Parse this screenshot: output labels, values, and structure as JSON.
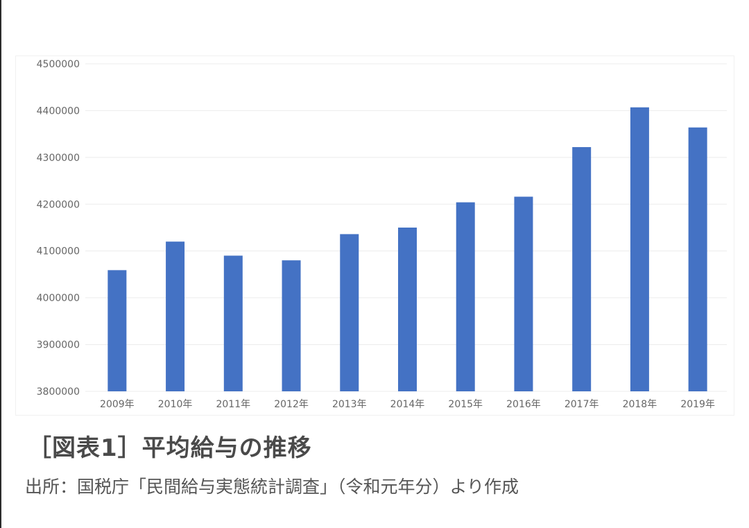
{
  "figure": {
    "title": "［図表1］平均給与の推移",
    "source": "出所：国税庁「民間給与実態統計調査」（令和元年分）より作成"
  },
  "chart_data": {
    "type": "bar",
    "title": "",
    "xlabel": "",
    "ylabel": "",
    "categories": [
      "2009年",
      "2010年",
      "2011年",
      "2012年",
      "2013年",
      "2014年",
      "2015年",
      "2016年",
      "2017年",
      "2018年",
      "2019年"
    ],
    "values": [
      4059000,
      4120000,
      4090000,
      4080000,
      4136000,
      4150000,
      4204000,
      4216000,
      4322000,
      4407000,
      4364000
    ],
    "ylim": [
      3800000,
      4500000
    ],
    "yticks": [
      "3800000",
      "3900000",
      "4000000",
      "4100000",
      "4200000",
      "4300000",
      "4400000",
      "4500000"
    ],
    "grid": true,
    "legend": "none",
    "colors": {
      "bar": "#4472c4",
      "grid": "#ececec",
      "tick_text": "#666666"
    }
  }
}
